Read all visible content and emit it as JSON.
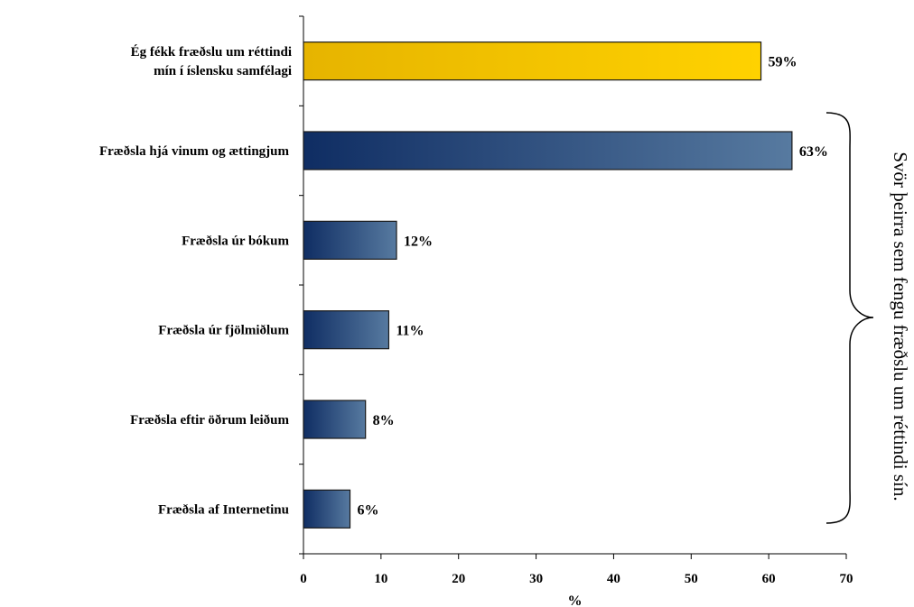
{
  "chart_data": {
    "type": "bar",
    "orientation": "horizontal",
    "categories": [
      [
        "Ég fékk fræðslu um réttindi",
        "mín í íslensku samfélagi"
      ],
      [
        "Fræðsla hjá vinum og ættingjum"
      ],
      [
        "Fræðsla úr bókum"
      ],
      [
        "Fræðsla úr fjölmiðlum"
      ],
      [
        "Fræðsla eftir öðrum leiðum"
      ],
      [
        "Fræðsla af Internetinu"
      ]
    ],
    "values": [
      59,
      63,
      12,
      11,
      8,
      6
    ],
    "value_labels": [
      "59%",
      "63%",
      "12%",
      "11%",
      "8%",
      "6%"
    ],
    "bar_colors": [
      "gold",
      "navy",
      "navy",
      "navy",
      "navy",
      "navy"
    ],
    "xlabel": "%",
    "xlim": [
      0,
      70
    ],
    "xticks": [
      0,
      10,
      20,
      30,
      40,
      50,
      60,
      70
    ],
    "grid": false,
    "annotation": "Svör þeirra sem fengu fræðslu um réttindi sín."
  },
  "colors": {
    "gold_start": "#e6b400",
    "gold_end": "#ffd200",
    "navy_start": "#0f2d63",
    "navy_end": "#577aa0",
    "outline": "#1a1a1a"
  }
}
